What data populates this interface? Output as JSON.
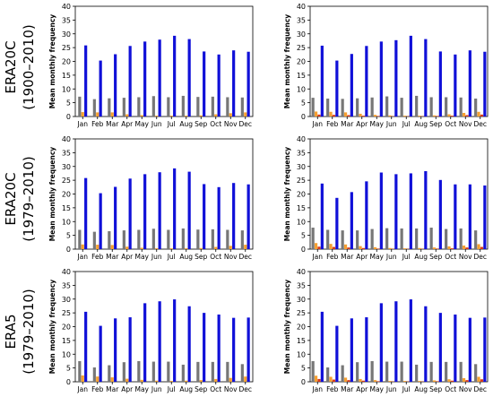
{
  "figure": {
    "row_labels": [
      {
        "dataset": "ERA20C",
        "period": "(1900–2010)"
      },
      {
        "dataset": "ERA20C",
        "period": "(1979–2010)"
      },
      {
        "dataset": "ERA5",
        "period": "(1979–2010)"
      }
    ]
  },
  "colors": {
    "blue": "#1010d8",
    "gray": "#777777",
    "orange": "#f5a030",
    "red": "#d83a1a"
  },
  "chart_data": [
    {
      "type": "bar",
      "panel": "row1-left",
      "categories": [
        "Jan",
        "Feb",
        "Mar",
        "Apr",
        "May",
        "Jun",
        "Jul",
        "Aug",
        "Sep",
        "Oct",
        "Nov",
        "Dec"
      ],
      "ylabel": "Mean monthly frequency",
      "ylim": [
        0,
        40
      ],
      "yticks": [
        0,
        5,
        10,
        15,
        20,
        25,
        30,
        35,
        40
      ],
      "series": [
        {
          "color": "gray",
          "values": [
            7.2,
            6.3,
            6.6,
            6.8,
            7.0,
            7.4,
            7.0,
            7.5,
            7.1,
            7.2,
            7.0,
            6.9
          ]
        },
        {
          "color": "orange",
          "values": [
            1.6,
            1.5,
            1.5,
            0.8,
            0.5,
            0.3,
            0.3,
            0.3,
            0.4,
            0.8,
            1.2,
            1.5
          ]
        },
        {
          "color": "blue",
          "values": [
            25.8,
            20.3,
            22.6,
            25.6,
            27.2,
            27.9,
            29.3,
            28.1,
            23.6,
            22.5,
            24.0,
            23.5
          ]
        }
      ]
    },
    {
      "type": "bar",
      "panel": "row1-right",
      "categories": [
        "Jan",
        "Feb",
        "Mar",
        "Apr",
        "May",
        "Jun",
        "Jul",
        "Aug",
        "Sep",
        "Oct",
        "Nov",
        "Dec"
      ],
      "ylabel": "Mean monthly frequency",
      "ylim": [
        0,
        40
      ],
      "yticks": [
        0,
        5,
        10,
        15,
        20,
        25,
        30,
        35,
        40
      ],
      "series": [
        {
          "color": "gray",
          "values": [
            6.8,
            6.5,
            6.4,
            6.6,
            6.9,
            7.3,
            6.8,
            7.5,
            7.0,
            7.0,
            6.9,
            6.5
          ]
        },
        {
          "color": "orange",
          "values": [
            1.8,
            1.7,
            1.5,
            1.0,
            0.6,
            0.4,
            0.3,
            0.3,
            0.4,
            0.8,
            1.3,
            1.7
          ]
        },
        {
          "color": "red",
          "values": [
            0.7,
            0.6,
            0.5,
            0.3,
            0.2,
            0.1,
            0.1,
            0.1,
            0.2,
            0.3,
            0.5,
            0.7
          ]
        },
        {
          "color": "blue",
          "values": [
            25.7,
            20.3,
            22.7,
            25.6,
            27.2,
            27.7,
            29.3,
            28.1,
            23.6,
            22.5,
            24.0,
            23.5
          ]
        }
      ]
    },
    {
      "type": "bar",
      "panel": "row2-left",
      "categories": [
        "Jan",
        "Feb",
        "Mar",
        "Apr",
        "May",
        "Jun",
        "Jul",
        "Aug",
        "Sep",
        "Oct",
        "Nov",
        "Dec"
      ],
      "ylabel": "Mean monthly frequency",
      "ylim": [
        0,
        40
      ],
      "yticks": [
        0,
        5,
        10,
        15,
        20,
        25,
        30,
        35,
        40
      ],
      "series": [
        {
          "color": "gray",
          "values": [
            7.0,
            6.3,
            6.5,
            6.8,
            7.0,
            7.4,
            7.0,
            7.5,
            7.1,
            7.2,
            7.0,
            6.8
          ]
        },
        {
          "color": "orange",
          "values": [
            1.7,
            1.6,
            1.5,
            0.9,
            0.5,
            0.3,
            0.3,
            0.3,
            0.4,
            0.8,
            1.2,
            1.6
          ]
        },
        {
          "color": "blue",
          "values": [
            25.8,
            20.3,
            22.6,
            25.6,
            27.2,
            27.9,
            29.3,
            28.1,
            23.6,
            22.5,
            24.0,
            23.5
          ]
        }
      ]
    },
    {
      "type": "bar",
      "panel": "row2-right",
      "categories": [
        "Jan",
        "Feb",
        "Mar",
        "Apr",
        "May",
        "Jun",
        "Jul",
        "Aug",
        "Sep",
        "Oct",
        "Nov",
        "Dec"
      ],
      "ylabel": "Mean monthly frequency",
      "ylim": [
        0,
        40
      ],
      "yticks": [
        0,
        5,
        10,
        15,
        20,
        25,
        30,
        35,
        40
      ],
      "series": [
        {
          "color": "gray",
          "values": [
            7.8,
            7.0,
            6.8,
            6.8,
            7.3,
            7.6,
            7.5,
            7.5,
            7.8,
            7.3,
            7.5,
            6.8
          ]
        },
        {
          "color": "orange",
          "values": [
            2.2,
            1.9,
            1.7,
            1.1,
            0.7,
            0.4,
            0.3,
            0.4,
            0.6,
            1.0,
            1.3,
            1.8
          ]
        },
        {
          "color": "red",
          "values": [
            0.9,
            0.8,
            0.6,
            0.4,
            0.2,
            0.1,
            0.1,
            0.1,
            0.2,
            0.3,
            0.6,
            0.8
          ]
        },
        {
          "color": "blue",
          "values": [
            23.8,
            18.6,
            20.7,
            24.6,
            27.8,
            27.2,
            27.5,
            28.3,
            25.1,
            23.5,
            23.5,
            23.1
          ]
        }
      ]
    },
    {
      "type": "bar",
      "panel": "row3-left",
      "categories": [
        "Jan",
        "Feb",
        "Mar",
        "Apr",
        "May",
        "Jun",
        "Jul",
        "Aug",
        "Sep",
        "Oct",
        "Nov",
        "Dec"
      ],
      "ylabel": "Mean monthly frequency",
      "ylim": [
        0,
        40
      ],
      "yticks": [
        0,
        5,
        10,
        15,
        20,
        25,
        30,
        35,
        40
      ],
      "series": [
        {
          "color": "gray",
          "values": [
            7.5,
            5.2,
            6.0,
            7.1,
            7.5,
            7.3,
            7.3,
            6.2,
            7.2,
            7.2,
            7.2,
            6.4
          ]
        },
        {
          "color": "orange",
          "values": [
            2.3,
            1.9,
            1.6,
            1.1,
            0.7,
            0.4,
            0.3,
            0.4,
            0.6,
            1.0,
            1.4,
            1.9
          ]
        },
        {
          "color": "blue",
          "values": [
            25.4,
            20.3,
            23.0,
            23.4,
            28.5,
            29.2,
            29.9,
            27.4,
            25.0,
            24.4,
            23.2,
            23.3
          ]
        }
      ]
    },
    {
      "type": "bar",
      "panel": "row3-right",
      "categories": [
        "Jan",
        "Feb",
        "Mar",
        "Apr",
        "May",
        "Jun",
        "Jul",
        "Aug",
        "Sep",
        "Oct",
        "Nov",
        "Dec"
      ],
      "ylabel": "Mean monthly frequency",
      "ylim": [
        0,
        40
      ],
      "yticks": [
        0,
        5,
        10,
        15,
        20,
        25,
        30,
        35,
        40
      ],
      "series": [
        {
          "color": "gray",
          "values": [
            7.5,
            5.2,
            6.0,
            7.1,
            7.5,
            7.3,
            7.3,
            6.2,
            7.2,
            7.2,
            7.2,
            6.4
          ]
        },
        {
          "color": "orange",
          "values": [
            2.2,
            1.8,
            1.5,
            1.0,
            0.6,
            0.3,
            0.3,
            0.3,
            0.5,
            0.9,
            1.3,
            1.8
          ]
        },
        {
          "color": "red",
          "values": [
            1.0,
            0.8,
            0.6,
            0.4,
            0.2,
            0.1,
            0.1,
            0.1,
            0.2,
            0.4,
            0.6,
            0.9
          ]
        },
        {
          "color": "blue",
          "values": [
            25.4,
            20.3,
            23.0,
            23.4,
            28.5,
            29.2,
            29.9,
            27.4,
            25.0,
            24.4,
            23.2,
            23.3
          ]
        }
      ]
    }
  ]
}
